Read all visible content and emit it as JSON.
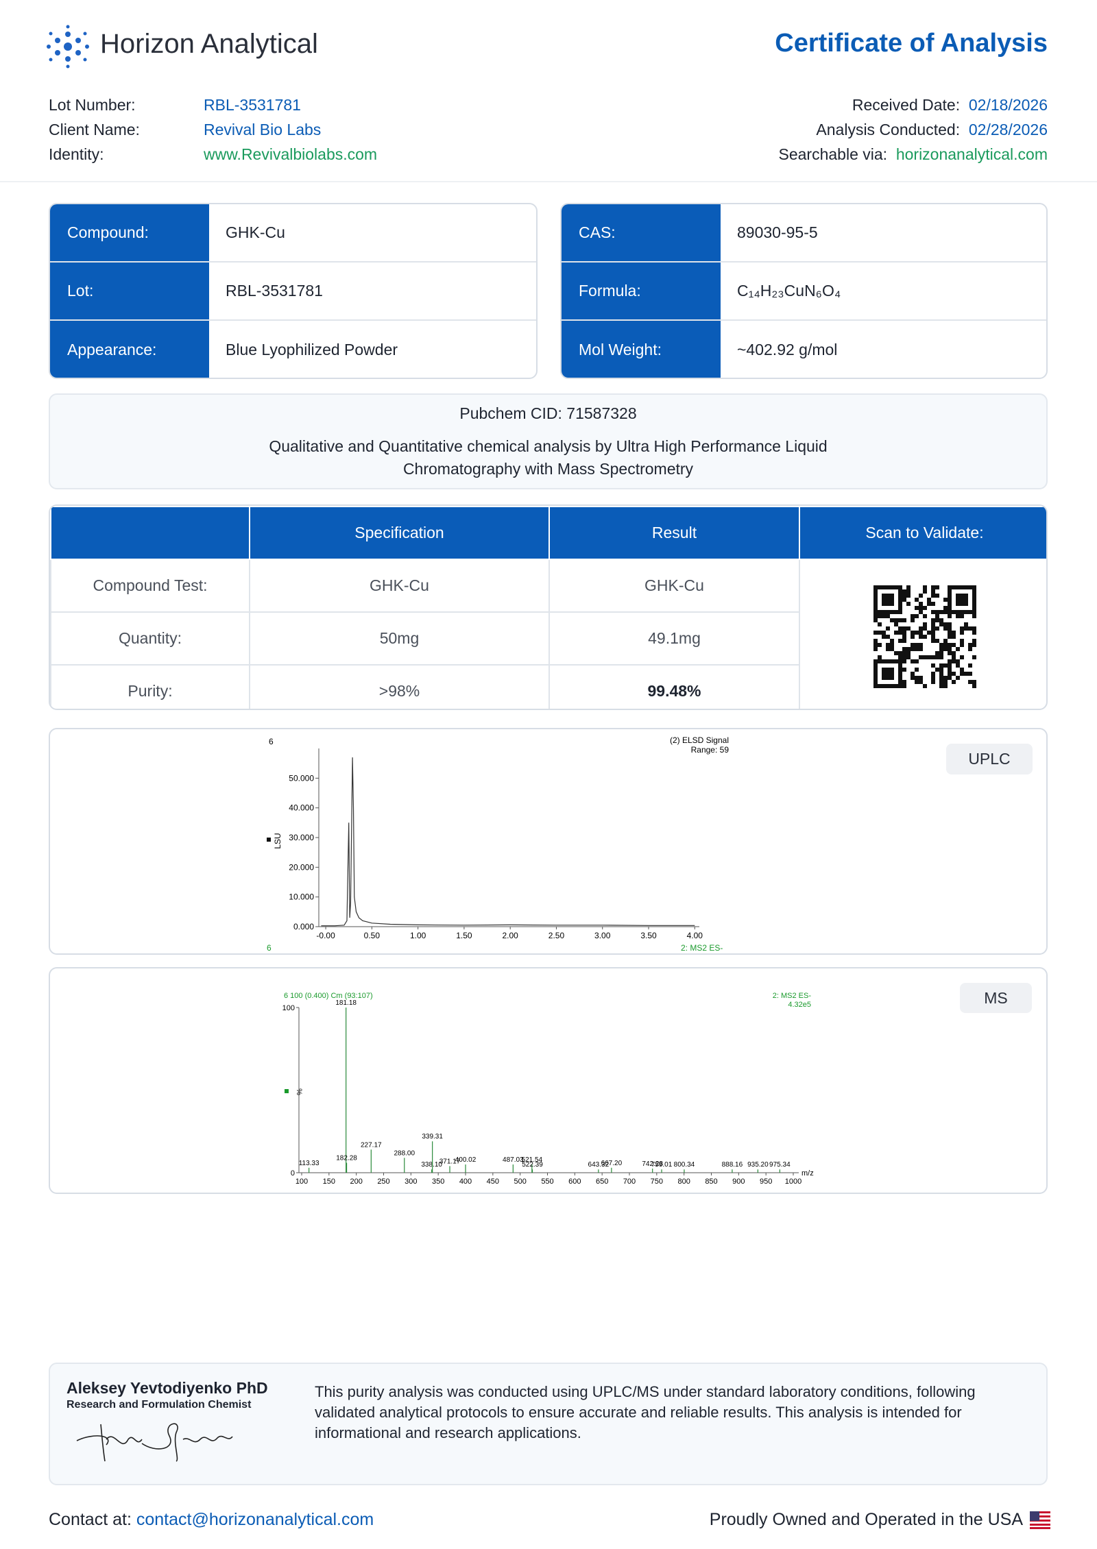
{
  "header": {
    "brand": "Horizon Analytical",
    "title": "Certificate of Analysis"
  },
  "info_left": [
    {
      "label": "Lot Number:",
      "value": "RBL-3531781"
    },
    {
      "label": "Client Name:",
      "value": "Revival Bio Labs"
    },
    {
      "label": "Identity:",
      "value": "www.Revivalbiolabs.com"
    }
  ],
  "info_right": [
    {
      "label": "Received Date:",
      "value": "02/18/2026"
    },
    {
      "label": "Analysis Conducted:",
      "value": "02/28/2026"
    },
    {
      "label": "Searchable via:",
      "value": "horizonanalytical.com"
    }
  ],
  "properties_left": [
    {
      "label": "Compound:",
      "value": "GHK-Cu"
    },
    {
      "label": "Lot:",
      "value": "RBL-3531781"
    },
    {
      "label": "Appearance:",
      "value": "Blue Lyophilized Powder"
    }
  ],
  "properties_right": [
    {
      "label": "CAS:",
      "value": "89030-95-5"
    },
    {
      "label": "Formula:",
      "value": "C₁₄H₂₃CuN₆O₄"
    },
    {
      "label": "Mol Weight:",
      "value": "~402.92 g/mol"
    }
  ],
  "description": {
    "pubchem": "Pubchem CID: 71587328",
    "method": "Qualitative and Quantitative chemical analysis by Ultra High Performance Liquid Chromatography with Mass Spectrometry"
  },
  "results": {
    "headers": [
      "Specification",
      "Result",
      "Scan to Validate:"
    ],
    "rows": [
      [
        "Compound Test:",
        "GHK-Cu",
        "GHK-Cu"
      ],
      [
        "Quantity:",
        "50mg",
        "49.1mg"
      ],
      [
        "Purity:",
        ">98%",
        "99.48%"
      ]
    ]
  },
  "uplc": {
    "badge": "UPLC",
    "top_left": "6",
    "signal": "(2) ELSD Signal",
    "range": "Range: 59",
    "ylabel": "LSU",
    "bottom_left": "6",
    "bottom_right": "2: MS2 ES-",
    "xlim": [
      -0.075,
      4.05
    ],
    "ylim": [
      0,
      60
    ],
    "xticks": [
      {
        "value": 0,
        "label": "-0.00"
      },
      {
        "value": 0.5,
        "label": "0.50"
      },
      {
        "value": 1,
        "label": "1.00"
      },
      {
        "value": 1.5,
        "label": "1.50"
      },
      {
        "value": 2,
        "label": "2.00"
      },
      {
        "value": 2.5,
        "label": "2.50"
      },
      {
        "value": 3,
        "label": "3.00"
      },
      {
        "value": 3.5,
        "label": "3.50"
      },
      {
        "value": 4,
        "label": "4.00"
      }
    ],
    "yticks": [
      {
        "value": 0,
        "label": "0.000"
      },
      {
        "value": 10,
        "label": "10.000"
      },
      {
        "value": 20,
        "label": "20.000"
      },
      {
        "value": 30,
        "label": "30.000"
      },
      {
        "value": 40,
        "label": "40.000"
      },
      {
        "value": 50,
        "label": "50.000"
      }
    ],
    "x": [
      -0.05,
      0.0,
      0.1,
      0.2,
      0.23,
      0.25,
      0.26,
      0.27,
      0.29,
      0.3,
      0.31,
      0.33,
      0.36,
      0.4,
      0.5,
      0.7,
      1.0,
      1.5,
      2.0,
      2.5,
      3.0,
      3.5,
      4.0
    ],
    "values": [
      0.3,
      0.3,
      0.3,
      0.5,
      2,
      35,
      3,
      8,
      57,
      40,
      10,
      5,
      3,
      2,
      1.2,
      0.8,
      0.6,
      0.5,
      0.6,
      0.5,
      0.5,
      0.4,
      0.4
    ]
  },
  "ms": {
    "badge": "MS",
    "header": "6 100 (0.400) Cm (93:107)",
    "channel": "2: MS2 ES-",
    "intensity": "4.32e5",
    "ylabel": "%",
    "xlabel": "m/z",
    "xlim": [
      100,
      1000
    ],
    "ylim": [
      0,
      100
    ],
    "xticks": [
      100,
      150,
      200,
      250,
      300,
      350,
      400,
      450,
      500,
      550,
      600,
      650,
      700,
      750,
      800,
      850,
      900,
      950,
      1000
    ],
    "yticks": [
      0,
      100
    ],
    "x": [
      113.33,
      181.18,
      182.28,
      227.17,
      288.0,
      338.1,
      339.31,
      371.17,
      400.02,
      487.03,
      521.54,
      522.39,
      643.32,
      667.2,
      742.28,
      759.01,
      800.34,
      888.16,
      935.2,
      975.34
    ],
    "x_labels": [
      "113.33",
      "181.18",
      "182.28",
      "227.17",
      "288.00",
      "338.10",
      "339.31",
      "371.17",
      "400.02",
      "487.03",
      "521.54",
      "522.39",
      "643.32",
      "667.20",
      "742.28",
      "759.01",
      "800.34",
      "888.16",
      "935.20",
      "975.34"
    ],
    "values": [
      3,
      100,
      6,
      14,
      9,
      2,
      19,
      4,
      5,
      5,
      5,
      2,
      2,
      3,
      2.5,
      2,
      2,
      2,
      2,
      2
    ]
  },
  "footer": {
    "name": "Aleksey Yevtodiyenko PhD",
    "role": "Research and Formulation Chemist",
    "statement": "This purity analysis was conducted using UPLC/MS under standard laboratory conditions, following validated analytical protocols to ensure accurate and reliable results. This analysis is intended for informational and research applications.",
    "contact_label": "Contact at:",
    "contact_email": "contact@horizonanalytical.com",
    "ownership": "Proudly Owned and Operated in the USA"
  }
}
